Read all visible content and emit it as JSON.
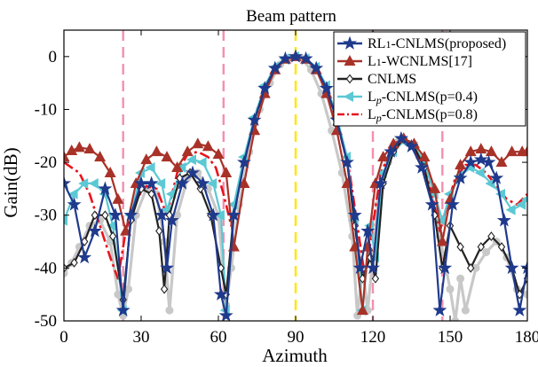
{
  "chart_data": {
    "type": "line",
    "title": "Beam pattern",
    "xlabel": "Azimuth",
    "ylabel": "Gain(dB)",
    "xlim": [
      0,
      180
    ],
    "ylim": [
      -50,
      5
    ],
    "xticks": [
      0,
      30,
      60,
      90,
      120,
      150,
      180
    ],
    "xtick_labels": [
      "0",
      "30",
      "60",
      "90",
      "120",
      "150",
      "180"
    ],
    "yticks": [
      -50,
      -40,
      -30,
      -20,
      -10,
      0
    ],
    "ytick_labels": [
      "-50",
      "-40",
      "-30",
      "-20",
      "-10",
      "0"
    ],
    "grid": false,
    "legend_position": "top-right",
    "reference_lines": [
      {
        "x": 23,
        "color": "#f48fb1",
        "style": "dashed"
      },
      {
        "x": 62,
        "color": "#f48fb1",
        "style": "dashed"
      },
      {
        "x": 90,
        "color": "#ffe600",
        "style": "dashed"
      },
      {
        "x": 120,
        "color": "#f48fb1",
        "style": "dashed"
      },
      {
        "x": 147,
        "color": "#f48fb1",
        "style": "dashed"
      }
    ],
    "series": [
      {
        "name": "RL1-CNLMS(proposed)",
        "label_main": "RL",
        "label_sub": "1",
        "label_rest": "-CNLMS(proposed)",
        "color": "#1f3a8c",
        "marker": "star",
        "line_style": "solid",
        "x": [
          0,
          4,
          8,
          12,
          16,
          20,
          23,
          26,
          30,
          34,
          38,
          40,
          42,
          46,
          50,
          54,
          58,
          61,
          63,
          66,
          70,
          74,
          78,
          82,
          86,
          90,
          94,
          98,
          102,
          106,
          110,
          113,
          115,
          118,
          120,
          123,
          127,
          131,
          135,
          139,
          143,
          146,
          148,
          151,
          154,
          158,
          162,
          165,
          168,
          171,
          174,
          177,
          180
        ],
        "y": [
          -24,
          -28,
          -38,
          -33,
          -25,
          -30,
          -48,
          -30,
          -24,
          -24,
          -30,
          -40,
          -31,
          -24,
          -22,
          -24,
          -30,
          -45,
          -49,
          -30,
          -20,
          -12,
          -6,
          -2.2,
          -0.4,
          0,
          -0.4,
          -2.2,
          -6,
          -12,
          -20,
          -30,
          -40,
          -33,
          -40,
          -24,
          -18,
          -15.5,
          -17,
          -21,
          -28,
          -48,
          -40,
          -28,
          -23,
          -20,
          -19.5,
          -20,
          -23,
          -31,
          -40,
          -48,
          -40
        ]
      },
      {
        "name": "L1-WCNLMS[17]",
        "label_main": "L",
        "label_sub": "1",
        "label_rest": "-WCNLMS[17]",
        "color": "#a83228",
        "marker": "triangle",
        "line_style": "solid",
        "x": [
          0,
          3,
          6,
          10,
          14,
          18,
          21,
          24,
          28,
          32,
          36,
          40,
          44,
          48,
          52,
          56,
          60,
          63,
          66,
          70,
          74,
          78,
          82,
          86,
          90,
          94,
          98,
          102,
          106,
          110,
          113,
          116,
          118,
          121,
          124,
          128,
          132,
          136,
          140,
          144,
          147,
          150,
          154,
          158,
          162,
          166,
          170,
          174,
          178,
          180
        ],
        "y": [
          -19,
          -17.8,
          -17.2,
          -17.5,
          -19,
          -22,
          -27,
          -33,
          -24,
          -19.5,
          -18,
          -19,
          -21,
          -18,
          -16.5,
          -17,
          -18.5,
          -22,
          -36,
          -24,
          -14,
          -7,
          -2.5,
          -0.5,
          0,
          -0.5,
          -2.5,
          -7,
          -14,
          -24,
          -36,
          -48,
          -36,
          -24,
          -19,
          -16.5,
          -15.5,
          -16.5,
          -19,
          -25,
          -35,
          -27,
          -20.5,
          -18,
          -17.5,
          -18,
          -20,
          -18,
          -18,
          -18
        ]
      },
      {
        "name": "CNLMS",
        "label_main": "CNLMS",
        "label_sub": "",
        "label_rest": "",
        "color": "#222222",
        "marker": "diamond",
        "line_style": "solid",
        "x": [
          0,
          4,
          8,
          12,
          16,
          19,
          23,
          26,
          30,
          34,
          37,
          39,
          41,
          45,
          49,
          53,
          57,
          61,
          63,
          66,
          70,
          74,
          78,
          82,
          86,
          90,
          94,
          98,
          102,
          106,
          110,
          113,
          116,
          119,
          121,
          124,
          128,
          132,
          136,
          140,
          144,
          147,
          150,
          154,
          158,
          162,
          166,
          170,
          174,
          177,
          180
        ],
        "y": [
          -40,
          -39,
          -35,
          -30,
          -30,
          -34,
          -46,
          -31,
          -25,
          -26,
          -33,
          -44,
          -30,
          -23,
          -22,
          -25,
          -30,
          -40,
          -45,
          -30,
          -20,
          -12,
          -6,
          -2.2,
          -0.4,
          0,
          -0.4,
          -2.2,
          -6,
          -12,
          -20,
          -32,
          -42,
          -38,
          -42,
          -24,
          -18,
          -15.5,
          -17,
          -21,
          -30,
          -40,
          -32,
          -36,
          -40,
          -36,
          -34,
          -36,
          -40,
          -45,
          -42
        ]
      },
      {
        "name": "Lp-CNLMS(p=0.4)",
        "label_main": "L",
        "label_sub": "p",
        "label_rest": "-CNLMS(p=0.4)",
        "color": "#5bc8d4",
        "marker": "arrow",
        "line_style": "solid",
        "x": [
          0,
          4,
          8,
          12,
          16,
          19,
          23,
          26,
          30,
          34,
          38,
          40,
          42,
          46,
          50,
          54,
          58,
          61,
          63,
          66,
          70,
          74,
          78,
          82,
          86,
          90,
          94,
          98,
          102,
          106,
          110,
          113,
          116,
          119,
          121,
          124,
          128,
          132,
          136,
          140,
          144,
          147,
          150,
          154,
          158,
          162,
          166,
          170,
          174,
          178,
          180
        ],
        "y": [
          -31,
          -26,
          -24,
          -24,
          -26,
          -32,
          -48,
          -30,
          -22,
          -21,
          -24,
          -29,
          -26,
          -21,
          -19.5,
          -20,
          -24,
          -30,
          -48,
          -28,
          -19,
          -11.5,
          -5.5,
          -2,
          -0.4,
          0,
          -0.4,
          -2,
          -5.5,
          -11.5,
          -19,
          -31,
          -48,
          -32,
          -38,
          -22,
          -18,
          -16,
          -17,
          -20,
          -26,
          -31,
          -26,
          -22.5,
          -21,
          -22,
          -24,
          -26,
          -29,
          -28,
          -27
        ]
      },
      {
        "name": "Lp-CNLMS(p=0.8)",
        "label_main": "L",
        "label_sub": "p",
        "label_rest": "-CNLMS(p=0.8)",
        "color": "#e8141c",
        "marker": "none",
        "line_style": "dashdot",
        "x": [
          0,
          3,
          6,
          10,
          14,
          18,
          21,
          24,
          28,
          32,
          36,
          40,
          44,
          48,
          52,
          56,
          59,
          62,
          65,
          69,
          73,
          77,
          81,
          85,
          90,
          95,
          99,
          103,
          107,
          111,
          114,
          117,
          120,
          123,
          127,
          131,
          135,
          139,
          143,
          146,
          149,
          152,
          156,
          160,
          164,
          168,
          172,
          176,
          180
        ],
        "y": [
          -20,
          -21,
          -22,
          -26,
          -32,
          -38,
          -42,
          -33,
          -27,
          -24.5,
          -25,
          -30,
          -22,
          -18.5,
          -18,
          -19,
          -21,
          -26,
          -32,
          -22,
          -14,
          -7.5,
          -3,
          -0.8,
          0,
          -0.8,
          -3,
          -7.5,
          -14,
          -22,
          -32,
          -42,
          -32,
          -22,
          -18,
          -16,
          -17,
          -20,
          -26,
          -33,
          -28,
          -23,
          -20.5,
          -20.5,
          -22,
          -24.5,
          -27,
          -28,
          -26
        ]
      },
      {
        "name": "",
        "label_main": "",
        "label_sub": "",
        "label_rest": "",
        "color": "#c8c8c8",
        "marker": "circle",
        "line_style": "solid",
        "in_legend": false,
        "x": [
          0,
          3,
          6,
          10,
          14,
          18,
          21,
          23,
          25,
          28,
          32,
          36,
          39,
          41,
          44,
          48,
          52,
          56,
          60,
          63,
          65,
          68,
          72,
          76,
          80,
          84,
          88,
          90,
          92,
          96,
          100,
          104,
          108,
          112,
          114,
          116,
          118,
          120,
          122,
          126,
          130,
          134,
          138,
          142,
          146,
          150,
          152,
          154,
          156,
          160,
          164,
          168,
          172,
          176,
          180
        ],
        "y": [
          -41,
          -39,
          -36,
          -32,
          -31,
          -35,
          -45,
          -49,
          -44,
          -30,
          -25,
          -26,
          -35,
          -48,
          -30,
          -23,
          -22,
          -25,
          -30,
          -47,
          -40,
          -28,
          -18,
          -10,
          -5,
          -1.5,
          -0.2,
          0,
          -0.2,
          -2.5,
          -7,
          -14,
          -22,
          -34,
          -49,
          -40,
          -48,
          -38,
          -28,
          -20,
          -16,
          -16.5,
          -19,
          -24,
          -34,
          -44,
          -50,
          -42,
          -48,
          -40,
          -37,
          -35,
          -38,
          -44,
          -45
        ]
      }
    ]
  }
}
